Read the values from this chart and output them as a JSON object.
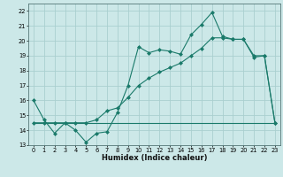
{
  "xlabel": "Humidex (Indice chaleur)",
  "background_color": "#cce8e8",
  "grid_color": "#aacfcf",
  "line_color": "#1a7a6a",
  "xlim": [
    -0.5,
    23.5
  ],
  "ylim": [
    13,
    22.5
  ],
  "xticks": [
    0,
    1,
    2,
    3,
    4,
    5,
    6,
    7,
    8,
    9,
    10,
    11,
    12,
    13,
    14,
    15,
    16,
    17,
    18,
    19,
    20,
    21,
    22,
    23
  ],
  "yticks": [
    13,
    14,
    15,
    16,
    17,
    18,
    19,
    20,
    21,
    22
  ],
  "series1_x": [
    0,
    1,
    2,
    3,
    4,
    5,
    6,
    7,
    8,
    9,
    10,
    11,
    12,
    13,
    14,
    15,
    16,
    17,
    18,
    19,
    20,
    21,
    22,
    23
  ],
  "series1_y": [
    16.0,
    14.7,
    13.8,
    14.5,
    14.0,
    13.2,
    13.8,
    13.9,
    15.2,
    17.0,
    19.6,
    19.2,
    19.4,
    19.3,
    19.1,
    20.4,
    21.1,
    21.9,
    20.3,
    20.1,
    20.1,
    18.9,
    19.0,
    14.5
  ],
  "series2_x": [
    0,
    23
  ],
  "series2_y": [
    14.5,
    14.5
  ],
  "series3_x": [
    0,
    1,
    2,
    3,
    4,
    5,
    6,
    7,
    8,
    9,
    10,
    11,
    12,
    13,
    14,
    15,
    16,
    17,
    18,
    19,
    20,
    21,
    22,
    23
  ],
  "series3_y": [
    14.5,
    14.5,
    14.5,
    14.5,
    14.5,
    14.5,
    14.7,
    15.3,
    15.5,
    16.2,
    17.0,
    17.5,
    17.9,
    18.2,
    18.5,
    19.0,
    19.5,
    20.2,
    20.2,
    20.1,
    20.1,
    19.0,
    19.0,
    14.5
  ]
}
